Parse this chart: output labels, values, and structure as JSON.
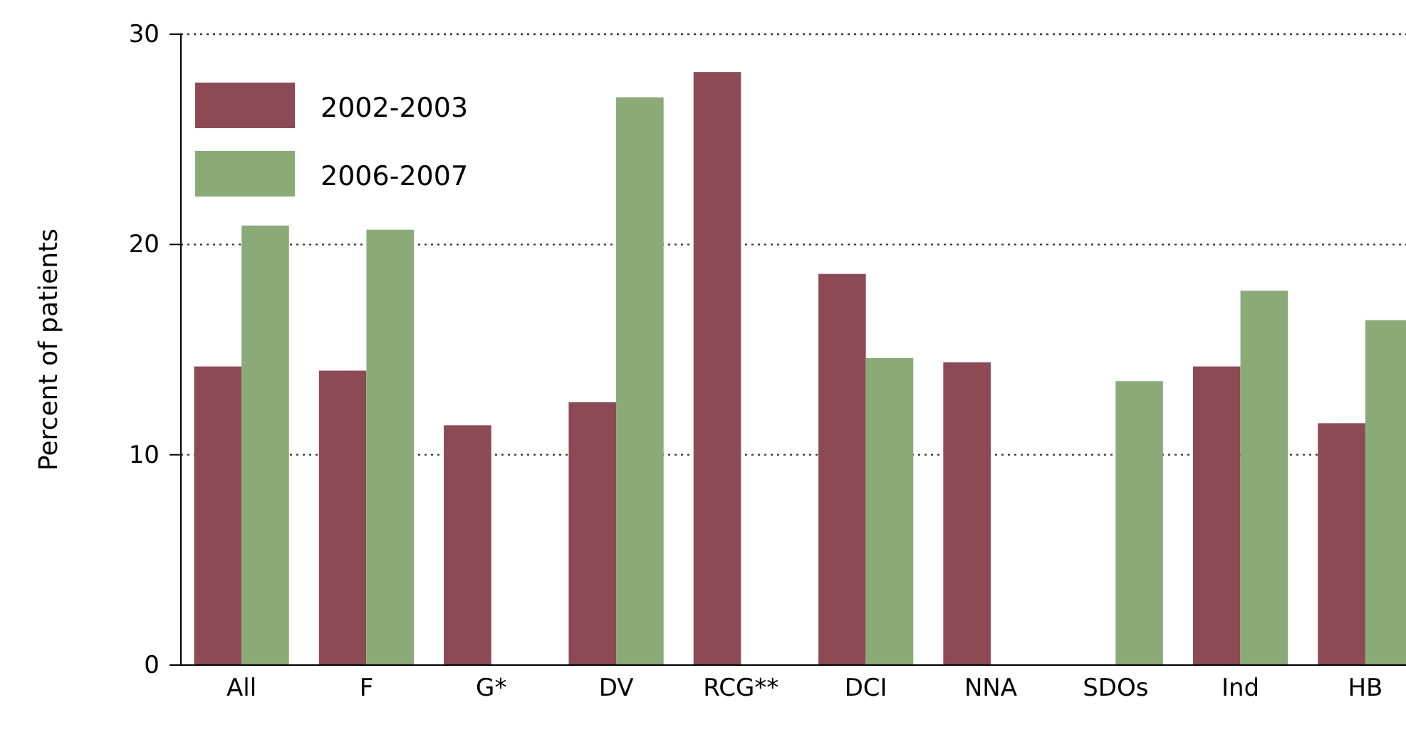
{
  "chart_data": {
    "type": "bar",
    "ylabel": "Percent of patients",
    "categories": [
      "All",
      "F",
      "G*",
      "DV",
      "RCG**",
      "DCI",
      "NNA",
      "SDOs",
      "Ind",
      "HB"
    ],
    "series": [
      {
        "name": "2002-2003",
        "color": "#8c4a54",
        "values": [
          14.2,
          14,
          11.4,
          12.5,
          28.2,
          18.6,
          14.4,
          null,
          14.2,
          11.5
        ]
      },
      {
        "name": "2006-2007",
        "color": "#8aaa78",
        "values": [
          20.9,
          20.7,
          null,
          27,
          null,
          14.6,
          null,
          13.5,
          17.8,
          16.4
        ]
      }
    ],
    "ylim": [
      0,
      30
    ],
    "yticks": [
      0,
      10,
      20,
      30
    ],
    "grid": "y",
    "legend": "top left"
  }
}
